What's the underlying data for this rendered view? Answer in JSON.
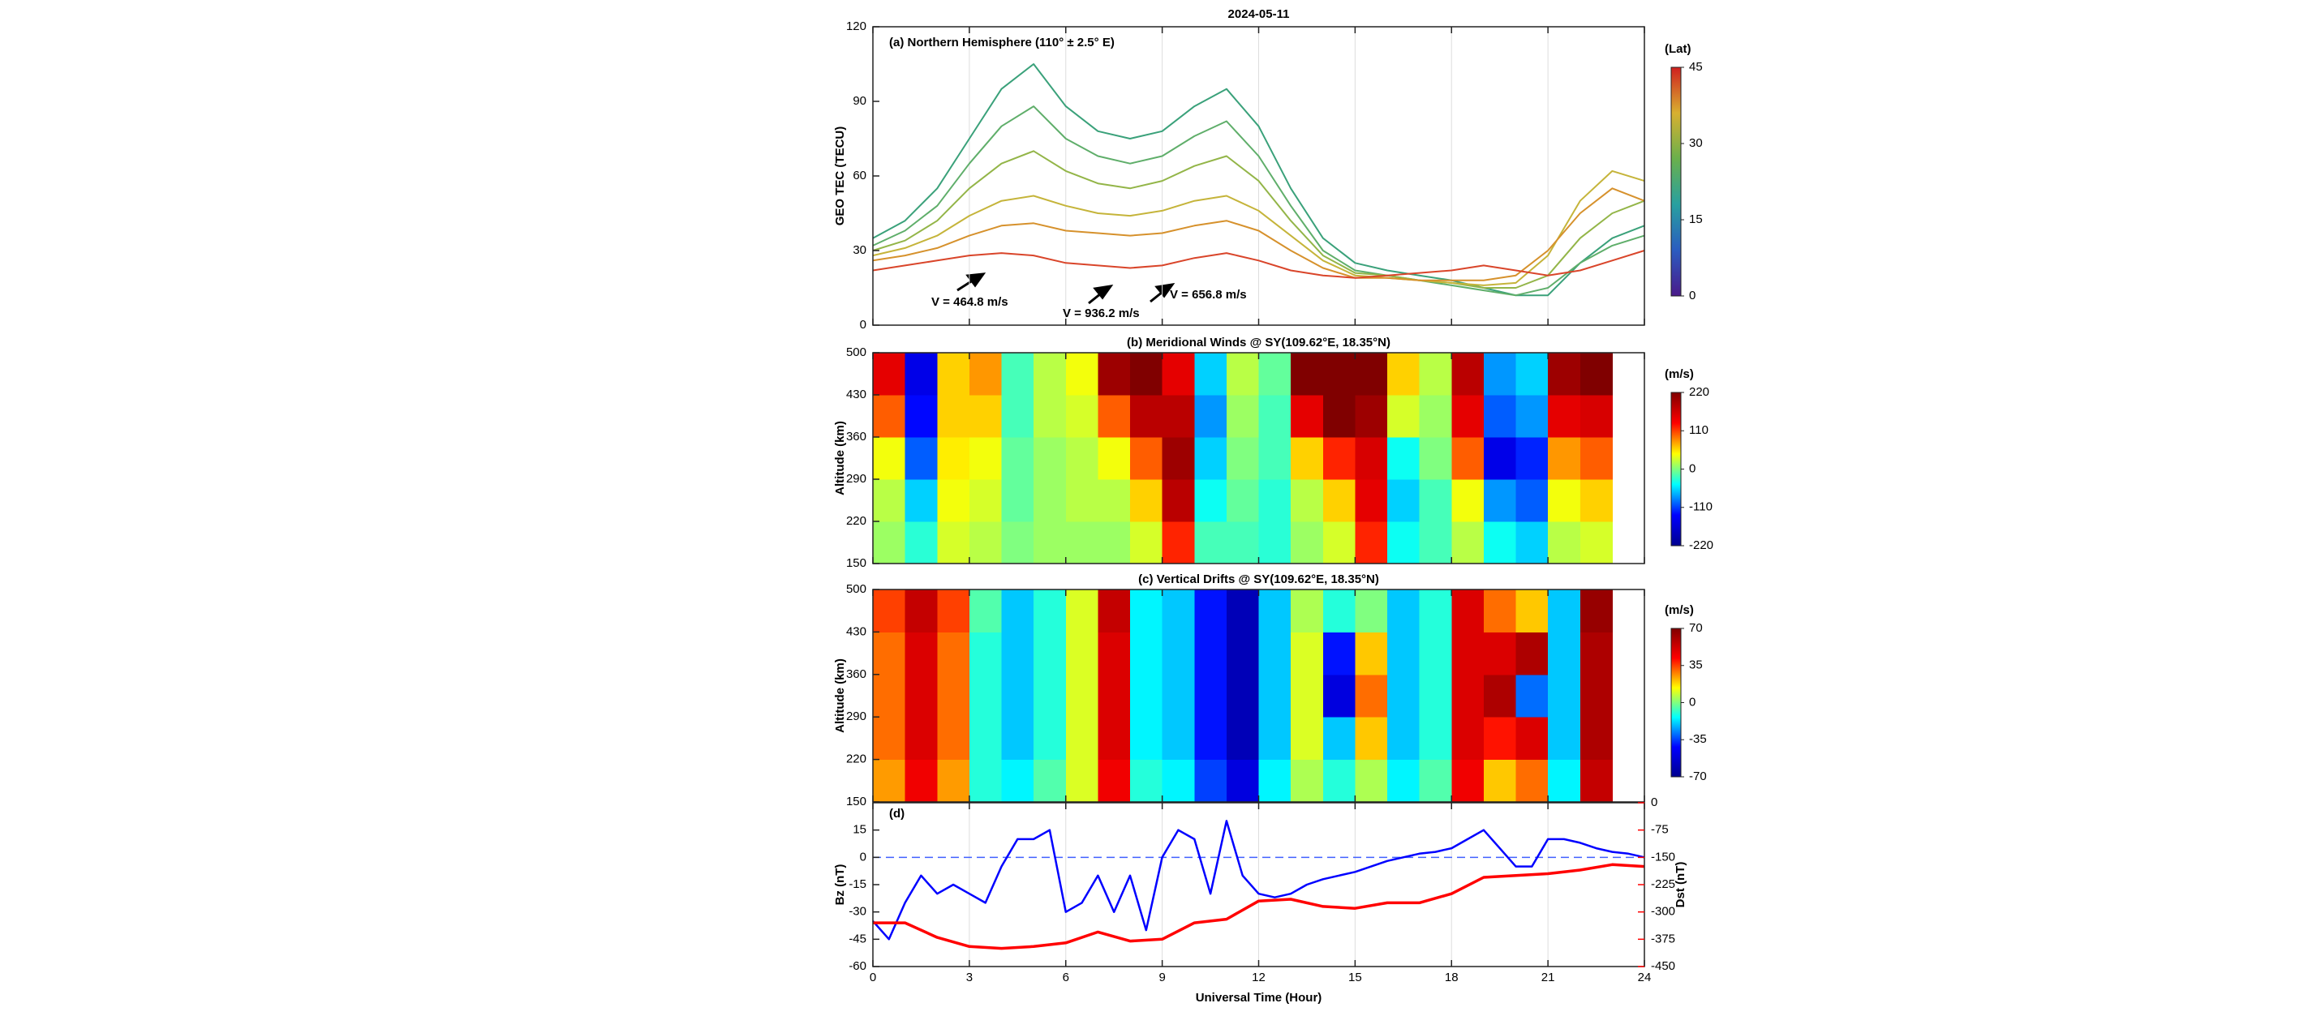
{
  "chart_data": [
    {
      "type": "line",
      "title": "2024-05-11",
      "panel_label": "(a) Northern Hemisphere (110° ± 2.5° E)",
      "ylabel": "GEO TEC (TECU)",
      "xlim": [
        0,
        24
      ],
      "xticks": [
        0,
        3,
        6,
        9,
        12,
        15,
        18,
        21,
        24
      ],
      "ylim": [
        0,
        120
      ],
      "yticks": [
        0,
        30,
        60,
        90,
        120
      ],
      "grid": true,
      "x": [
        0,
        1,
        2,
        3,
        4,
        5,
        6,
        7,
        8,
        9,
        10,
        11,
        12,
        13,
        14,
        15,
        16,
        17,
        18,
        19,
        20,
        21,
        22,
        23,
        24
      ],
      "series": [
        {
          "color": "#3aa17a",
          "values": [
            35,
            42,
            55,
            75,
            95,
            105,
            88,
            78,
            75,
            78,
            88,
            95,
            80,
            55,
            35,
            25,
            22,
            20,
            18,
            15,
            12,
            12,
            25,
            35,
            40
          ]
        },
        {
          "color": "#5fae6a",
          "values": [
            32,
            38,
            48,
            65,
            80,
            88,
            75,
            68,
            65,
            68,
            76,
            82,
            68,
            48,
            30,
            22,
            20,
            18,
            16,
            14,
            12,
            15,
            25,
            32,
            36
          ]
        },
        {
          "color": "#93b548",
          "values": [
            30,
            34,
            42,
            55,
            65,
            70,
            62,
            57,
            55,
            58,
            64,
            68,
            58,
            42,
            28,
            21,
            20,
            18,
            17,
            15,
            15,
            20,
            35,
            45,
            50
          ]
        },
        {
          "color": "#c5b43a",
          "values": [
            28,
            31,
            36,
            44,
            50,
            52,
            48,
            45,
            44,
            46,
            50,
            52,
            46,
            36,
            26,
            20,
            19,
            18,
            17,
            16,
            17,
            28,
            50,
            62,
            58
          ]
        },
        {
          "color": "#d6912c",
          "values": [
            26,
            28,
            31,
            36,
            40,
            41,
            38,
            37,
            36,
            37,
            40,
            42,
            38,
            30,
            23,
            19,
            19,
            18,
            18,
            18,
            20,
            30,
            45,
            55,
            50
          ]
        },
        {
          "color": "#d9452a",
          "values": [
            22,
            24,
            26,
            28,
            29,
            28,
            25,
            24,
            23,
            24,
            27,
            29,
            26,
            22,
            20,
            19,
            20,
            21,
            22,
            24,
            22,
            20,
            22,
            26,
            30
          ]
        }
      ],
      "annotations": [
        "V = 464.8 m/s",
        "V = 936.2 m/s",
        "V = 656.8 m/s"
      ],
      "colorbar": {
        "label": "(Lat)",
        "lim": [
          0,
          45
        ],
        "ticks": [
          0,
          15,
          30,
          45
        ],
        "colormap": [
          "#4a1a8a",
          "#2b5cc0",
          "#28a0a0",
          "#6ab04c",
          "#d8b030",
          "#d02020"
        ]
      }
    },
    {
      "type": "heatmap",
      "title": "(b) Meridional Winds @ SY(109.62°E, 18.35°N)",
      "ylabel": "Altitude (km)",
      "xlim": [
        0,
        24
      ],
      "xticks": [
        0,
        3,
        6,
        9,
        12,
        15,
        18,
        21,
        24
      ],
      "ylim": [
        150,
        500
      ],
      "yticks": [
        150,
        220,
        290,
        360,
        430,
        500
      ],
      "x_bins": [
        0,
        1,
        2,
        3,
        4,
        5,
        6,
        7,
        8,
        9,
        10,
        11,
        12,
        13,
        14,
        15,
        16,
        17,
        18,
        19,
        20,
        21,
        22,
        23
      ],
      "y_bins": [
        150,
        220,
        290,
        360,
        430,
        500
      ],
      "values": [
        [
          10,
          -30,
          30,
          20,
          0,
          10,
          10,
          10,
          30,
          120,
          -20,
          -20,
          -30,
          10,
          30,
          120,
          -40,
          -20,
          20,
          -40,
          -60,
          20,
          30
        ],
        [
          20,
          -60,
          40,
          30,
          -10,
          10,
          20,
          20,
          60,
          180,
          -40,
          -10,
          -30,
          20,
          60,
          150,
          -60,
          -20,
          40,
          -80,
          -100,
          40,
          60
        ],
        [
          40,
          -100,
          50,
          40,
          -10,
          10,
          20,
          40,
          100,
          200,
          -60,
          0,
          -20,
          60,
          120,
          160,
          -40,
          0,
          100,
          -150,
          -120,
          80,
          100
        ],
        [
          100,
          -130,
          60,
          60,
          -20,
          20,
          30,
          100,
          180,
          180,
          -80,
          10,
          -20,
          150,
          220,
          200,
          30,
          10,
          150,
          -100,
          -80,
          150,
          160
        ],
        [
          150,
          -150,
          60,
          80,
          -20,
          20,
          40,
          200,
          220,
          150,
          -60,
          20,
          -10,
          220,
          220,
          220,
          60,
          20,
          180,
          -80,
          -60,
          200,
          220
        ]
      ],
      "colorbar": {
        "label": "(m/s)",
        "lim": [
          -220,
          220
        ],
        "ticks": [
          -220,
          -110,
          0,
          110,
          220
        ],
        "colormap": [
          "#00008f",
          "#0000ff",
          "#00ffff",
          "#ffff00",
          "#ff0000",
          "#800000"
        ]
      }
    },
    {
      "type": "heatmap",
      "title": "(c) Vertical Drifts @ SY(109.62°E, 18.35°N)",
      "ylabel": "Altitude (km)",
      "xlim": [
        0,
        24
      ],
      "xticks": [
        0,
        3,
        6,
        9,
        12,
        15,
        18,
        21,
        24
      ],
      "ylim": [
        150,
        500
      ],
      "yticks": [
        150,
        220,
        290,
        360,
        430,
        500
      ],
      "x_bins": [
        0,
        1,
        2,
        3,
        4,
        5,
        6,
        7,
        8,
        9,
        10,
        11,
        12,
        13,
        14,
        15,
        16,
        17,
        18,
        19,
        20,
        21,
        22,
        23
      ],
      "y_bins": [
        150,
        220,
        290,
        360,
        430,
        500
      ],
      "values": [
        [
          25,
          45,
          25,
          -10,
          -15,
          -5,
          10,
          45,
          -10,
          -15,
          -35,
          -50,
          -15,
          5,
          -10,
          5,
          -15,
          -5,
          45,
          20,
          30,
          -15,
          55
        ],
        [
          30,
          50,
          30,
          -10,
          -20,
          -10,
          10,
          50,
          -15,
          -20,
          -40,
          -60,
          -20,
          10,
          -20,
          20,
          -20,
          -10,
          50,
          40,
          50,
          -20,
          60
        ],
        [
          30,
          50,
          30,
          -10,
          -20,
          -10,
          10,
          50,
          -15,
          -20,
          -40,
          -60,
          -20,
          10,
          -50,
          30,
          -20,
          -10,
          50,
          60,
          -30,
          -20,
          60
        ],
        [
          30,
          50,
          30,
          -10,
          -20,
          -10,
          10,
          50,
          -15,
          -20,
          -40,
          -60,
          -20,
          10,
          -40,
          20,
          -20,
          -10,
          50,
          50,
          60,
          -20,
          60
        ],
        [
          35,
          55,
          35,
          -5,
          -20,
          -10,
          10,
          55,
          -15,
          -20,
          -40,
          -60,
          -20,
          5,
          -10,
          0,
          -20,
          -10,
          50,
          30,
          20,
          -20,
          65
        ]
      ],
      "colorbar": {
        "label": "(m/s)",
        "lim": [
          -70,
          70
        ],
        "ticks": [
          -70,
          -35,
          0,
          35,
          70
        ],
        "colormap": [
          "#00008f",
          "#0000ff",
          "#00ffff",
          "#ffff00",
          "#ff0000",
          "#800000"
        ]
      }
    },
    {
      "type": "dual_line",
      "panel_label": "(d)",
      "xlabel": "Universal Time (Hour)",
      "xtick_labels": true,
      "ylabel": "Bz (nT)",
      "y2label": "Dst (nT)",
      "grid": true,
      "xlim": [
        0,
        24
      ],
      "xticks": [
        0,
        3,
        6,
        9,
        12,
        15,
        18,
        21,
        24
      ],
      "ylim": [
        -60,
        30
      ],
      "yticks": [
        -60,
        -45,
        -30,
        -15,
        0,
        15
      ],
      "reference_line": 0,
      "y2lim": [
        -450,
        0
      ],
      "y2ticks": [
        -450,
        -375,
        -300,
        -225,
        -150,
        -75,
        0
      ],
      "series": [
        {
          "color": "#0000ff",
          "x": [
            0,
            0.5,
            1,
            1.5,
            2,
            2.5,
            3,
            3.5,
            4,
            4.5,
            5,
            5.5,
            6,
            6.5,
            7,
            7.5,
            8,
            8.5,
            9,
            9.5,
            10,
            10.5,
            11,
            11.5,
            12,
            12.5,
            13,
            13.5,
            14,
            14.5,
            15,
            15.5,
            16,
            16.5,
            17,
            17.5,
            18,
            18.5,
            19,
            19.5,
            20,
            20.5,
            21,
            21.5,
            22,
            22.5,
            23,
            23.5,
            24
          ],
          "values": [
            -35,
            -45,
            -25,
            -10,
            -20,
            -15,
            -20,
            -25,
            -5,
            10,
            10,
            15,
            -30,
            -25,
            -10,
            -30,
            -10,
            -40,
            0,
            15,
            10,
            -20,
            20,
            -10,
            -20,
            -22,
            -20,
            -15,
            -12,
            -10,
            -8,
            -5,
            -2,
            0,
            2,
            3,
            5,
            10,
            15,
            5,
            -5,
            -5,
            10,
            10,
            8,
            5,
            3,
            2,
            0
          ]
        },
        {
          "color": "#ff0000",
          "axis": "y2",
          "x": [
            0,
            1,
            2,
            3,
            4,
            5,
            6,
            7,
            8,
            9,
            10,
            11,
            12,
            13,
            14,
            15,
            16,
            17,
            18,
            19,
            20,
            21,
            22,
            23,
            24
          ],
          "values": [
            -330,
            -330,
            -370,
            -395,
            -400,
            -395,
            -385,
            -355,
            -380,
            -375,
            -330,
            -320,
            -270,
            -265,
            -285,
            -290,
            -275,
            -275,
            -250,
            -205,
            -200,
            -195,
            -185,
            -170,
            -175
          ]
        }
      ]
    }
  ]
}
